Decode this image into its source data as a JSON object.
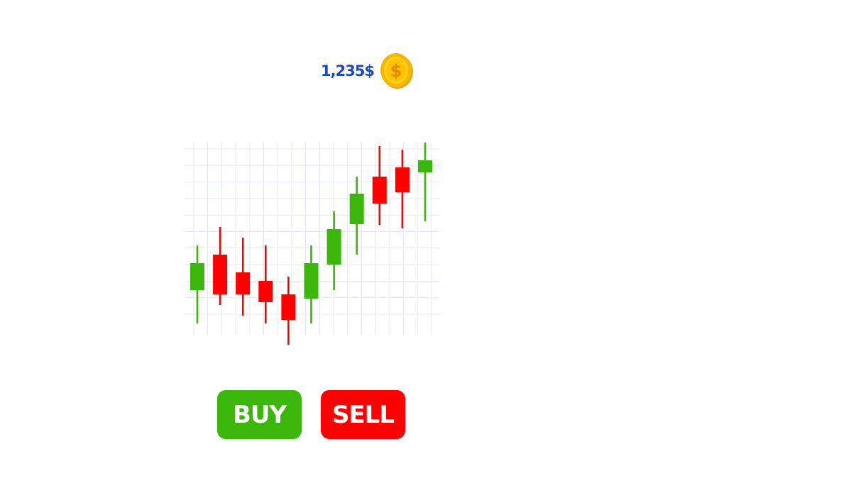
{
  "balance": {
    "amount": "1,235$",
    "icon": "dollar-coin-icon",
    "coin_symbol": "$"
  },
  "actions": {
    "buy_label": "BUY",
    "sell_label": "SELL"
  },
  "colors": {
    "up": "#3ab70a",
    "down": "#ff0000",
    "grid": "#e6e9f2",
    "balance_text": "#1f49b6",
    "coin_outer": "#f2b705",
    "coin_inner": "#ffd21f"
  },
  "chart_data": {
    "type": "candlestick",
    "grid": true,
    "ylim": [
      0,
      300
    ],
    "candles": [
      {
        "direction": "up",
        "open": 77,
        "close": 115,
        "low": 30,
        "high": 140
      },
      {
        "direction": "down",
        "open": 127,
        "close": 71,
        "low": 56,
        "high": 166
      },
      {
        "direction": "down",
        "open": 102,
        "close": 71,
        "low": 41,
        "high": 151
      },
      {
        "direction": "down",
        "open": 90,
        "close": 60,
        "low": 30,
        "high": 140
      },
      {
        "direction": "down",
        "open": 71,
        "close": 35,
        "low": 0,
        "high": 96
      },
      {
        "direction": "up",
        "open": 65,
        "close": 115,
        "low": 30,
        "high": 140
      },
      {
        "direction": "up",
        "open": 113,
        "close": 163,
        "low": 77,
        "high": 188
      },
      {
        "direction": "up",
        "open": 170,
        "close": 213,
        "low": 127,
        "high": 237
      },
      {
        "direction": "down",
        "open": 237,
        "close": 199,
        "low": 169,
        "high": 280
      },
      {
        "direction": "down",
        "open": 250,
        "close": 215,
        "low": 164,
        "high": 275
      },
      {
        "direction": "up",
        "open": 243,
        "close": 260,
        "low": 174,
        "high": 285
      }
    ]
  }
}
